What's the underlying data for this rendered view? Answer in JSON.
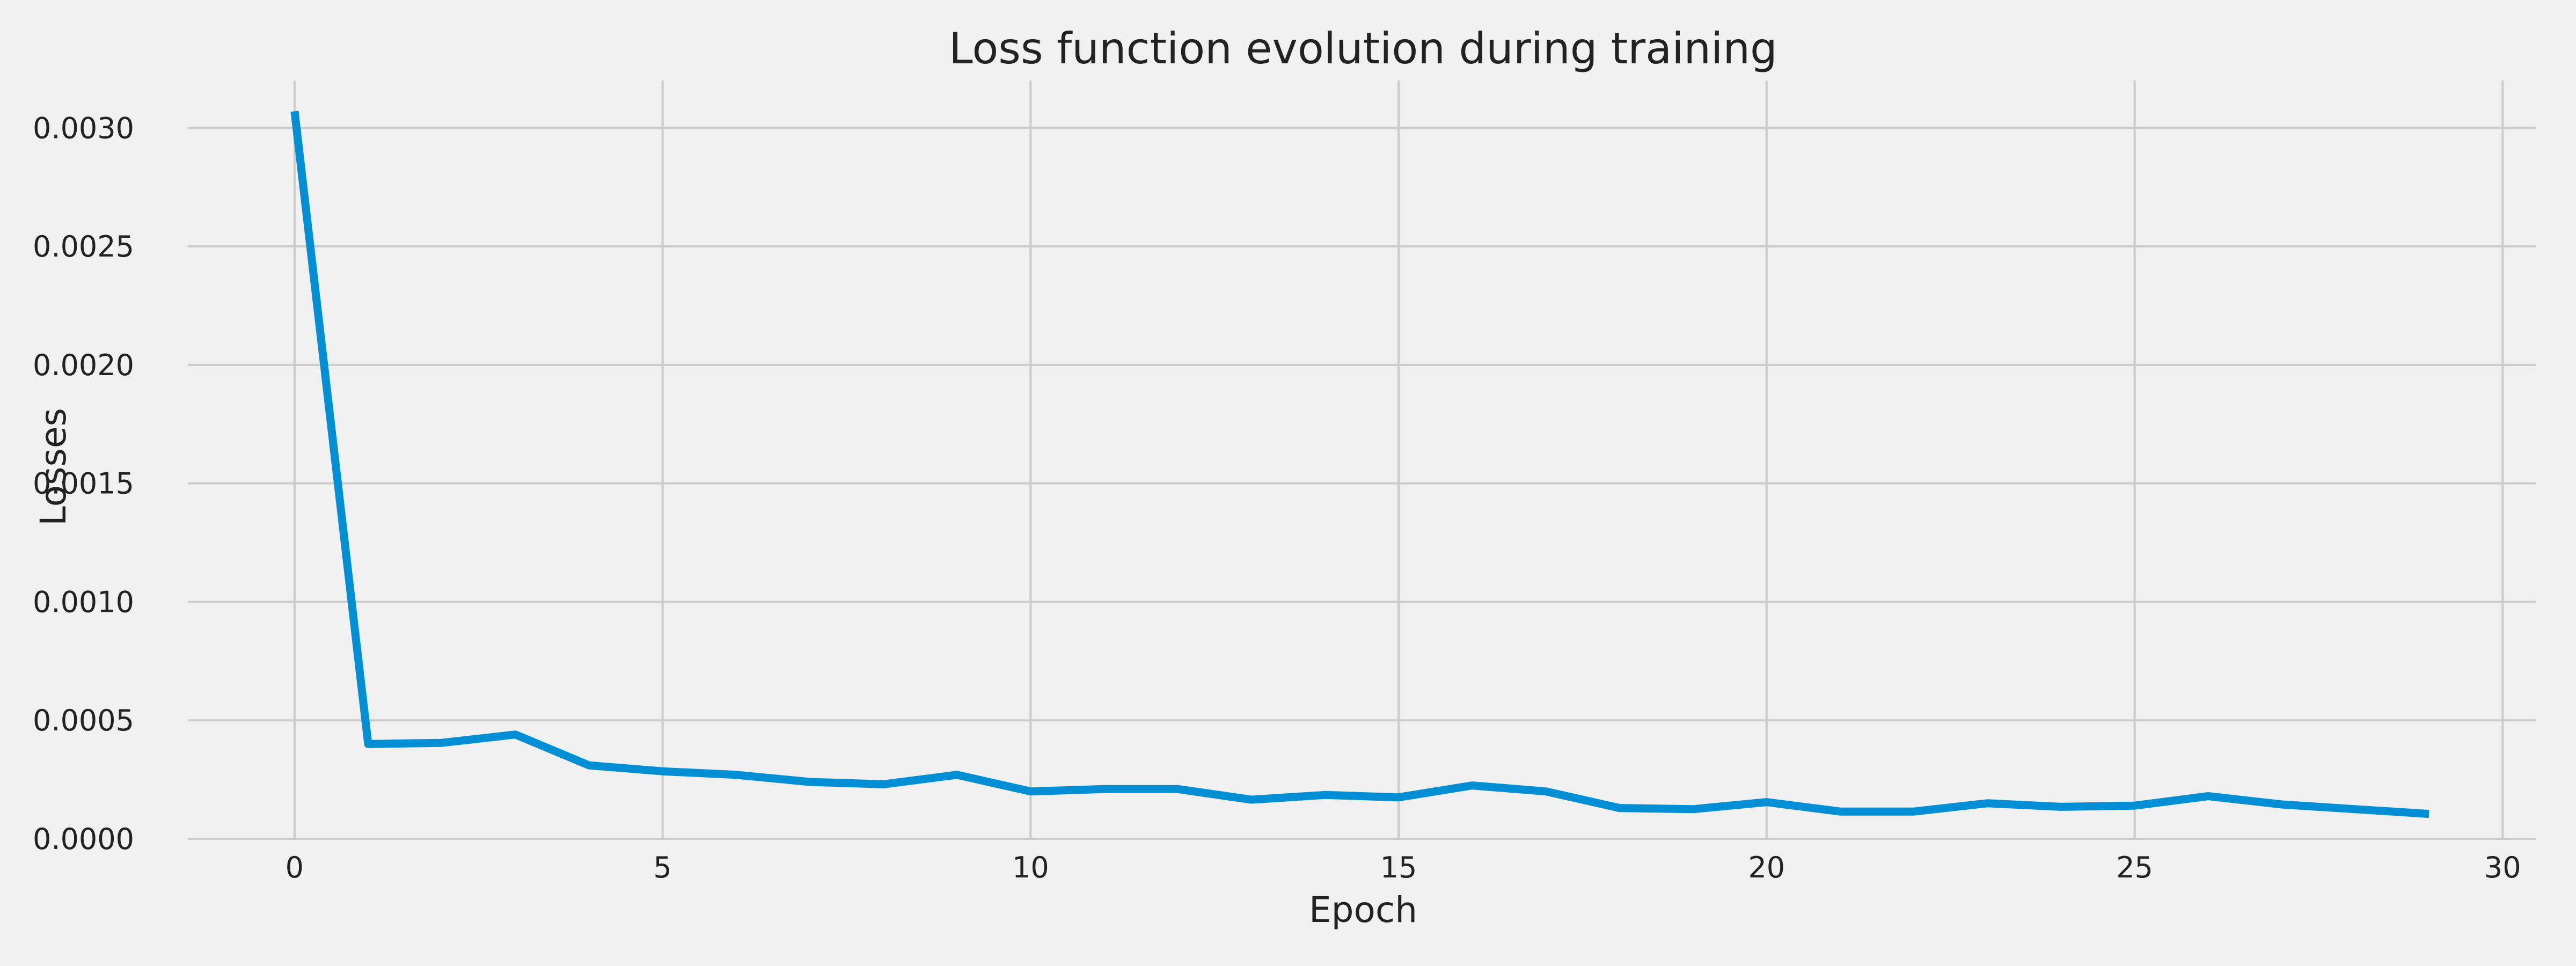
{
  "chart_data": {
    "type": "line",
    "title": "Loss function evolution during training",
    "xlabel": "Epoch",
    "ylabel": "Losses",
    "xlim": [
      -1.45,
      30.45
    ],
    "ylim": [
      0,
      0.0032
    ],
    "xticks": [
      0,
      5,
      10,
      15,
      20,
      25,
      30
    ],
    "xtick_labels": [
      "0",
      "5",
      "10",
      "15",
      "20",
      "25",
      "30"
    ],
    "yticks": [
      0.0,
      0.0005,
      0.001,
      0.0015,
      0.002,
      0.0025,
      0.003
    ],
    "ytick_labels": [
      "0.0000",
      "0.0005",
      "0.0010",
      "0.0015",
      "0.0020",
      "0.0025",
      "0.0030"
    ],
    "grid": true,
    "series": [
      {
        "color": "#008fd5",
        "x": [
          0,
          1,
          2,
          3,
          4,
          5,
          6,
          7,
          8,
          9,
          10,
          11,
          12,
          13,
          14,
          15,
          16,
          17,
          18,
          19,
          20,
          21,
          22,
          23,
          24,
          25,
          26,
          27,
          28,
          29
        ],
        "values": [
          0.00307,
          0.0004,
          0.000405,
          0.00044,
          0.00031,
          0.000285,
          0.00027,
          0.00024,
          0.00023,
          0.00027,
          0.0002,
          0.00021,
          0.00021,
          0.000165,
          0.000185,
          0.000175,
          0.000225,
          0.0002,
          0.00013,
          0.000125,
          0.000155,
          0.000115,
          0.000115,
          0.00015,
          0.000135,
          0.00014,
          0.00018,
          0.000145,
          0.000125,
          0.000105
        ]
      }
    ]
  }
}
